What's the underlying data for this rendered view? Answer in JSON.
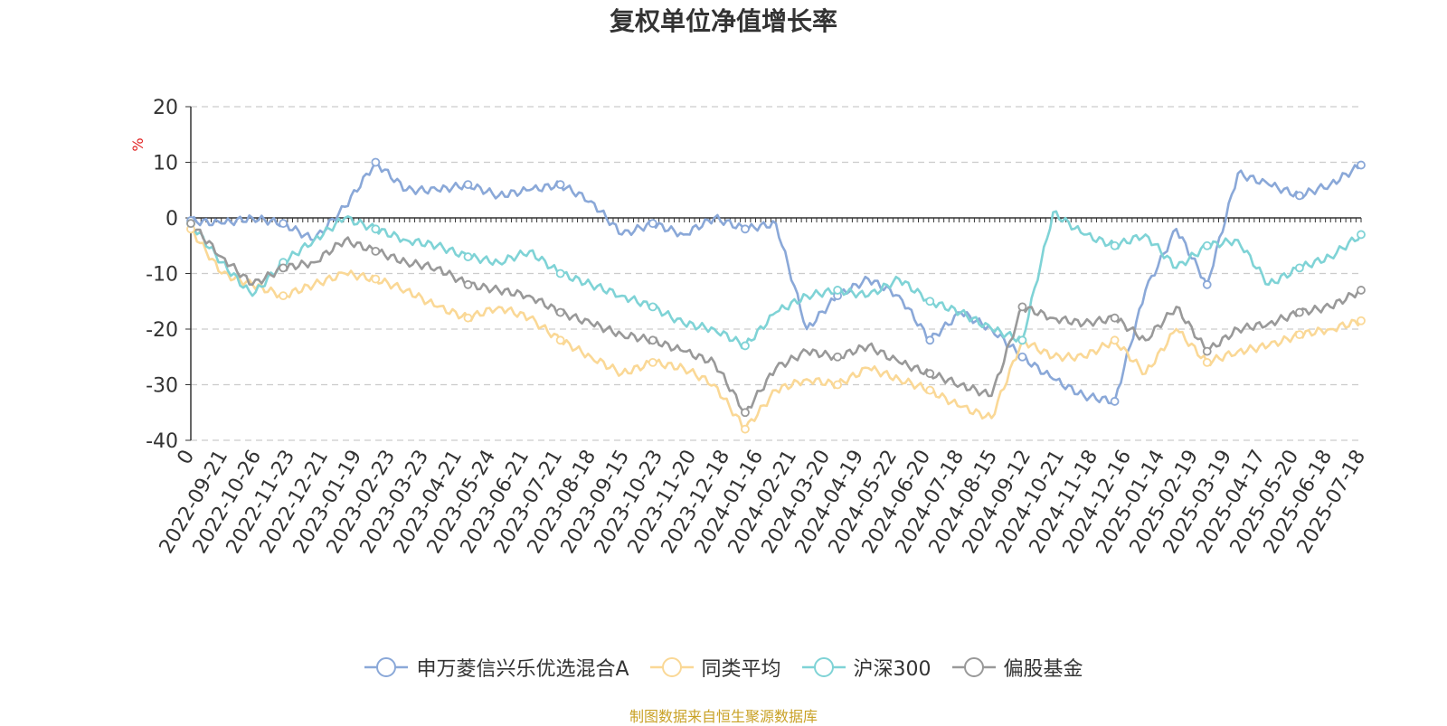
{
  "chart_data": {
    "type": "line",
    "title": "复权单位净值增长率",
    "ylabel": "%",
    "ylim": [
      -40,
      20
    ],
    "yticks": [
      20,
      10,
      0,
      -10,
      -20,
      -30,
      -40
    ],
    "x_start_label": "0",
    "x_tick_labels": [
      "2022-09-21",
      "2022-10-26",
      "2022-11-23",
      "2022-12-21",
      "2023-01-19",
      "2023-02-23",
      "2023-03-23",
      "2023-04-21",
      "2023-05-24",
      "2023-06-21",
      "2023-07-21",
      "2023-08-18",
      "2023-09-15",
      "2023-10-23",
      "2023-11-20",
      "2023-12-18",
      "2024-01-16",
      "2024-02-21",
      "2024-03-20",
      "2024-04-19",
      "2024-05-22",
      "2024-06-20",
      "2024-07-18",
      "2024-08-15",
      "2024-09-12",
      "2024-10-21",
      "2024-11-18",
      "2024-12-16",
      "2025-01-14",
      "2025-02-19",
      "2025-03-19",
      "2025-04-17",
      "2025-05-20",
      "2025-06-18",
      "2025-07-18"
    ],
    "grid": true,
    "legend_position": "bottom",
    "series": [
      {
        "name": "申万菱信兴乐优选混合A",
        "color": "#8aa8d8",
        "values": [
          -0.5,
          -1,
          0,
          -1,
          -4,
          2,
          10,
          5,
          5,
          6,
          4,
          5,
          6,
          3,
          -3,
          -1,
          -3,
          0,
          -2,
          -1,
          -20,
          -14,
          -11,
          -14,
          -22,
          -17,
          -20,
          -25,
          -29,
          -32,
          -33,
          -13,
          -2,
          -12,
          8,
          6,
          4,
          6,
          9.5
        ]
      },
      {
        "name": "同类平均",
        "color": "#fad896",
        "values": [
          -2,
          -10,
          -12,
          -14,
          -12,
          -10,
          -11,
          -13,
          -16,
          -18,
          -16,
          -18,
          -22,
          -25,
          -28,
          -26,
          -27,
          -30,
          -38,
          -31,
          -29,
          -30,
          -27,
          -29,
          -31,
          -34,
          -36,
          -22,
          -25,
          -25,
          -22,
          -28,
          -20,
          -26,
          -24,
          -23,
          -21,
          -20,
          -18.5
        ]
      },
      {
        "name": "沪深300",
        "color": "#7fd3d6",
        "values": [
          -1,
          -8,
          -14,
          -8,
          -4,
          0,
          -2,
          -4,
          -5,
          -7,
          -8,
          -6,
          -10,
          -12,
          -14,
          -16,
          -19,
          -20,
          -23,
          -17,
          -14,
          -13,
          -14,
          -11,
          -15,
          -17,
          -20,
          -22,
          1,
          -3,
          -5,
          -3,
          -9,
          -5,
          -4,
          -12,
          -9,
          -7,
          -3
        ]
      },
      {
        "name": "偏股基金",
        "color": "#999999",
        "values": [
          -1,
          -7,
          -12,
          -9,
          -8,
          -4,
          -6,
          -8,
          -9,
          -12,
          -13,
          -14,
          -17,
          -19,
          -21,
          -22,
          -24,
          -26,
          -35,
          -27,
          -24,
          -25,
          -23,
          -26,
          -28,
          -30,
          -32,
          -16,
          -18,
          -19,
          -18,
          -22,
          -16,
          -24,
          -20,
          -19,
          -17,
          -16,
          -13
        ]
      }
    ]
  },
  "source_note": "制图数据来自恒生聚源数据库"
}
